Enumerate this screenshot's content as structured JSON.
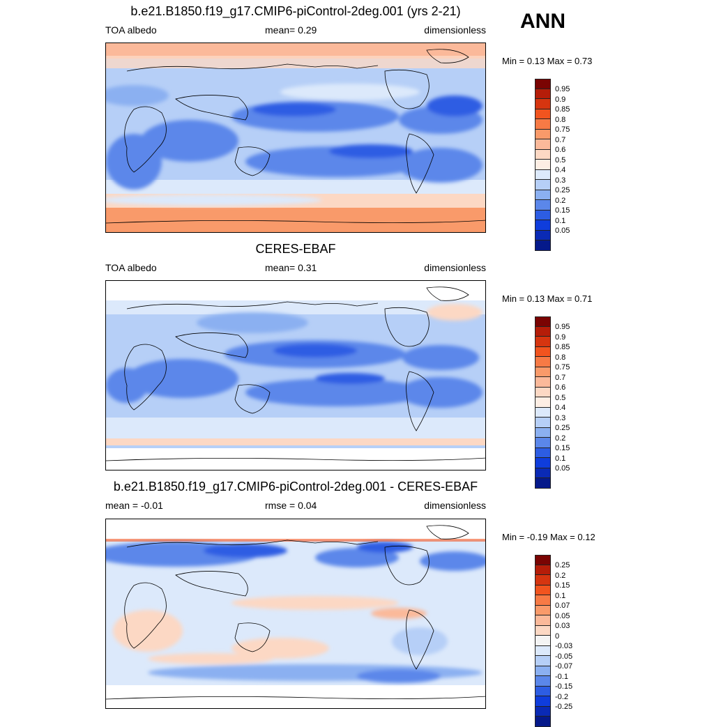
{
  "season": "ANN",
  "panels": [
    {
      "title": "b.e21.B1850.f19_g17.CMIP6-piControl-2deg.001 (yrs 2-21)",
      "left_label": "TOA albedo",
      "center_label": "mean=   0.29",
      "right_label": "dimensionless",
      "minmax": "Min =   0.13 Max =   0.73",
      "colorbar": {
        "labels": [
          "0.95",
          "0.9",
          "0.85",
          "0.8",
          "0.75",
          "0.7",
          "0.6",
          "0.5",
          "0.4",
          "0.3",
          "0.25",
          "0.2",
          "0.15",
          "0.1",
          "0.05"
        ],
        "colors": [
          "#7a0403",
          "#b51d09",
          "#d63510",
          "#f1541f",
          "#f77a45",
          "#f99a6a",
          "#fbb99a",
          "#fcd8c4",
          "#fdeee4",
          "#dce9fb",
          "#b6cff7",
          "#8bb0f1",
          "#5b87ea",
          "#2d5de3",
          "#0f3ddc",
          "#0a2ab5",
          "#05198a"
        ]
      }
    },
    {
      "title": "CERES-EBAF",
      "left_label": "TOA albedo",
      "center_label": "mean=   0.31",
      "right_label": "dimensionless",
      "minmax": "Min =   0.13 Max =   0.71",
      "colorbar": {
        "labels": [
          "0.95",
          "0.9",
          "0.85",
          "0.8",
          "0.75",
          "0.7",
          "0.6",
          "0.5",
          "0.4",
          "0.3",
          "0.25",
          "0.2",
          "0.15",
          "0.1",
          "0.05"
        ],
        "colors": [
          "#7a0403",
          "#b51d09",
          "#d63510",
          "#f1541f",
          "#f77a45",
          "#f99a6a",
          "#fbb99a",
          "#fcd8c4",
          "#fdeee4",
          "#dce9fb",
          "#b6cff7",
          "#8bb0f1",
          "#5b87ea",
          "#2d5de3",
          "#0f3ddc",
          "#0a2ab5",
          "#05198a"
        ]
      }
    },
    {
      "title": "b.e21.B1850.f19_g17.CMIP6-piControl-2deg.001 - CERES-EBAF",
      "left_label": "mean =  -0.01",
      "center_label": "rmse =   0.04",
      "right_label": "dimensionless",
      "minmax": "Min =  -0.19 Max =   0.12",
      "colorbar": {
        "labels": [
          "0.25",
          "0.2",
          "0.15",
          "0.1",
          "0.07",
          "0.05",
          "0.03",
          "0",
          "-0.03",
          "-0.05",
          "-0.07",
          "-0.1",
          "-0.15",
          "-0.2",
          "-0.25"
        ],
        "colors": [
          "#7a0403",
          "#b51d09",
          "#d63510",
          "#f1541f",
          "#f77a45",
          "#f99a6a",
          "#fbb99a",
          "#fcd8c4",
          "#f4f4f4",
          "#dce9fb",
          "#b6cff7",
          "#8bb0f1",
          "#5b87ea",
          "#2d5de3",
          "#0f3ddc",
          "#0a2ab5",
          "#05198a"
        ]
      }
    }
  ]
}
